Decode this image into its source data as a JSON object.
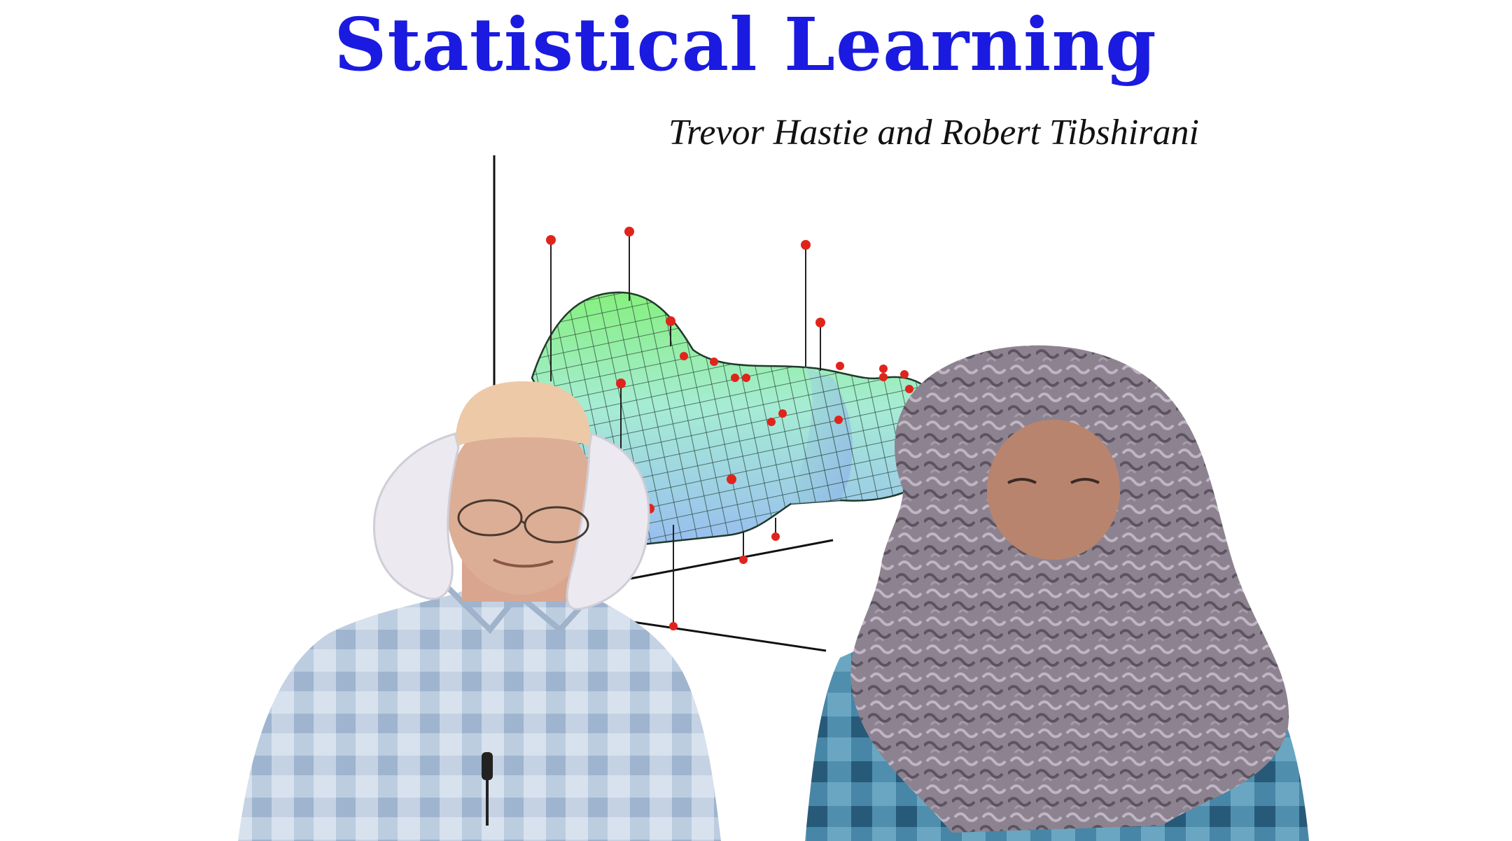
{
  "slide": {
    "title": "Statistical Learning",
    "authors": "Trevor Hastie and Robert Tibshirani",
    "title_color": "#1a1ae0"
  },
  "figure": {
    "surface_colors": [
      "#8ef08a",
      "#a8eed8",
      "#9ec4ec"
    ],
    "point_color": "#e0241c"
  }
}
